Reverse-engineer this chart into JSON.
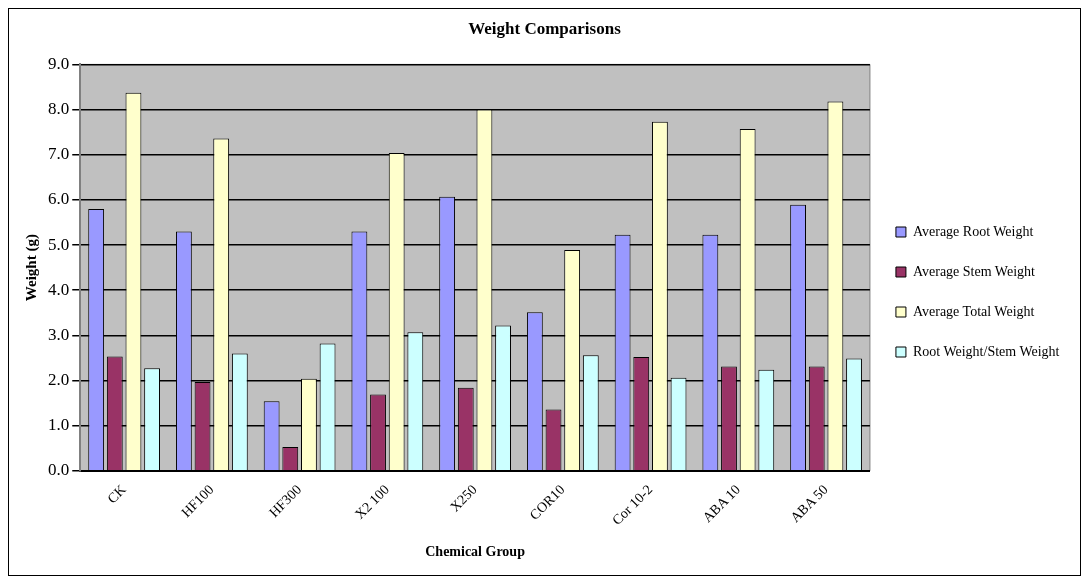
{
  "chart_data": {
    "type": "bar",
    "title": "Weight Comparisons",
    "xlabel": "Chemical Group",
    "ylabel": "Weight (g)",
    "categories": [
      "CK",
      "HF100",
      "HF300",
      "X2 100",
      "X250",
      "COR10",
      "Cor 10-2",
      "ABA 10",
      "ABA 50"
    ],
    "series": [
      {
        "name": "Average Root Weight",
        "color": "#9999ff",
        "values": [
          5.8,
          5.3,
          1.54,
          5.3,
          6.07,
          3.51,
          5.23,
          5.23,
          5.89
        ]
      },
      {
        "name": "Average Stem Weight",
        "color": "#993366",
        "values": [
          2.53,
          1.97,
          0.53,
          1.69,
          1.84,
          1.36,
          2.52,
          2.31,
          2.31
        ]
      },
      {
        "name": "Average Total Weight",
        "color": "#ffffcc",
        "values": [
          8.37,
          7.36,
          2.04,
          7.04,
          8.0,
          4.89,
          7.73,
          7.57,
          8.18
        ]
      },
      {
        "name": "Root Weight/Stem Weight",
        "color": "#ccffff",
        "values": [
          2.27,
          2.6,
          2.82,
          3.07,
          3.22,
          2.56,
          2.06,
          2.24,
          2.49
        ]
      }
    ],
    "ylim": [
      0,
      9
    ],
    "yticks": [
      {
        "value": 0,
        "label": "0.0"
      },
      {
        "value": 1,
        "label": "1.0"
      },
      {
        "value": 2,
        "label": "2.0"
      },
      {
        "value": 3,
        "label": "3.0"
      },
      {
        "value": 4,
        "label": "4.0"
      },
      {
        "value": 5,
        "label": "5.0"
      },
      {
        "value": 6,
        "label": "6.0"
      },
      {
        "value": 7,
        "label": "7.0"
      },
      {
        "value": 8,
        "label": "8.0"
      },
      {
        "value": 9,
        "label": "9.0"
      }
    ],
    "grid": "y",
    "legend": "right"
  }
}
